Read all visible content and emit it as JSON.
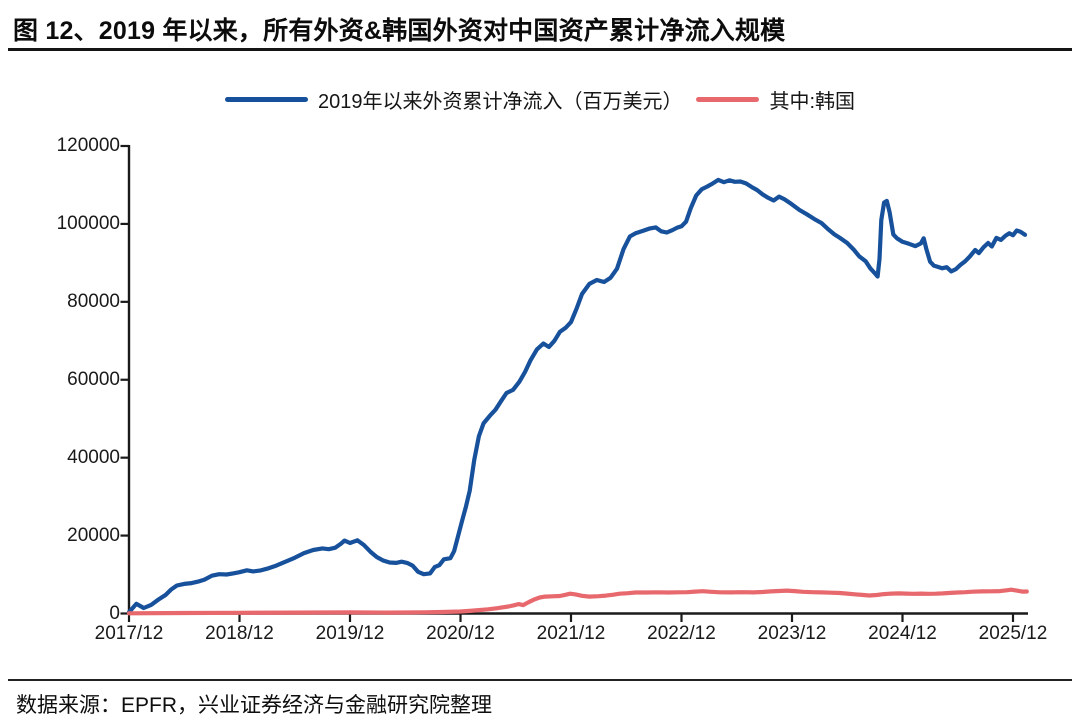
{
  "title": "图 12、2019 年以来，所有外资&韩国外资对中国资产累计净流入规模",
  "source_note": "数据来源：EPFR，兴业证券经济与金融研究院整理",
  "colors": {
    "foreign_total_line": "#17519b",
    "korea_line": "#e8696d",
    "axis": "#1a1a1a"
  },
  "legend": {
    "items": [
      {
        "label": "2019年以来外资累计净流入（百万美元）",
        "color": "#17519b"
      },
      {
        "label": "其中:韩国",
        "color": "#e8696d"
      }
    ]
  },
  "chart_data": {
    "type": "line",
    "title": "图 12、2019 年以来，所有外资&韩国外资对中国资产累计净流入规模",
    "xlabel": "",
    "ylabel": "",
    "x_unit": "months since 2017/12, monthly-to-weekly cumulative series",
    "value_unit": "百万美元 (million USD)",
    "ylim": [
      0,
      120000
    ],
    "y_ticks": [
      0,
      20000,
      40000,
      60000,
      80000,
      100000,
      120000
    ],
    "x_ticks": {
      "labels": [
        "2017/12",
        "2018/12",
        "2019/12",
        "2020/12",
        "2021/12",
        "2022/12",
        "2023/12",
        "2024/12",
        "2025/12"
      ],
      "months": [
        0,
        12,
        24,
        36,
        48,
        60,
        72,
        84,
        96
      ]
    },
    "x_range_months": [
      0,
      97.5
    ],
    "grid": false,
    "legend_position": "top-center",
    "series": [
      {
        "name": "2019年以来外资累计净流入（百万美元）",
        "color": "#17519b",
        "points": [
          [
            0,
            300
          ],
          [
            0.8,
            2500
          ],
          [
            1.6,
            1400
          ],
          [
            2.4,
            2200
          ],
          [
            3.2,
            3600
          ],
          [
            4,
            4800
          ],
          [
            4.6,
            6200
          ],
          [
            5.2,
            7200
          ],
          [
            6,
            7600
          ],
          [
            6.8,
            7800
          ],
          [
            7.5,
            8200
          ],
          [
            8.2,
            8700
          ],
          [
            9,
            9700
          ],
          [
            9.8,
            10100
          ],
          [
            10.6,
            10000
          ],
          [
            11.3,
            10300
          ],
          [
            12,
            10600
          ],
          [
            12.8,
            11100
          ],
          [
            13.5,
            10800
          ],
          [
            14.2,
            11000
          ],
          [
            15,
            11500
          ],
          [
            16,
            12300
          ],
          [
            17,
            13300
          ],
          [
            18,
            14300
          ],
          [
            19,
            15500
          ],
          [
            20,
            16300
          ],
          [
            21,
            16700
          ],
          [
            21.7,
            16500
          ],
          [
            22.4,
            16900
          ],
          [
            23,
            17900
          ],
          [
            23.4,
            18700
          ],
          [
            24,
            18100
          ],
          [
            24.8,
            18800
          ],
          [
            25.5,
            17600
          ],
          [
            26.2,
            15900
          ],
          [
            26.9,
            14500
          ],
          [
            27.6,
            13600
          ],
          [
            28.3,
            13100
          ],
          [
            29,
            13000
          ],
          [
            29.6,
            13300
          ],
          [
            30.2,
            13000
          ],
          [
            30.8,
            12300
          ],
          [
            31.4,
            10700
          ],
          [
            32,
            10100
          ],
          [
            32.7,
            10300
          ],
          [
            33.2,
            11900
          ],
          [
            33.7,
            12400
          ],
          [
            34.2,
            13900
          ],
          [
            34.9,
            14200
          ],
          [
            35.3,
            16000
          ],
          [
            35.7,
            19500
          ],
          [
            36.2,
            24000
          ],
          [
            36.6,
            27500
          ],
          [
            37,
            31500
          ],
          [
            37.5,
            39500
          ],
          [
            38,
            45500
          ],
          [
            38.5,
            48800
          ],
          [
            39.2,
            50800
          ],
          [
            39.8,
            52300
          ],
          [
            40.4,
            54500
          ],
          [
            41,
            56600
          ],
          [
            41.7,
            57400
          ],
          [
            42.4,
            59500
          ],
          [
            43,
            62000
          ],
          [
            43.6,
            65000
          ],
          [
            44.3,
            67800
          ],
          [
            45,
            69300
          ],
          [
            45.6,
            68400
          ],
          [
            46.2,
            70000
          ],
          [
            46.8,
            72300
          ],
          [
            47.4,
            73300
          ],
          [
            48,
            74800
          ],
          [
            48.6,
            78200
          ],
          [
            49.2,
            82000
          ],
          [
            50,
            84600
          ],
          [
            50.8,
            85600
          ],
          [
            51.6,
            85100
          ],
          [
            52.3,
            86200
          ],
          [
            53,
            88500
          ],
          [
            53.7,
            93500
          ],
          [
            54.4,
            96800
          ],
          [
            55,
            97600
          ],
          [
            55.8,
            98200
          ],
          [
            56.5,
            98800
          ],
          [
            57.2,
            99100
          ],
          [
            57.8,
            98100
          ],
          [
            58.4,
            97800
          ],
          [
            59,
            98400
          ],
          [
            59.5,
            99000
          ],
          [
            60,
            99400
          ],
          [
            60.5,
            100600
          ],
          [
            61,
            104000
          ],
          [
            61.6,
            107300
          ],
          [
            62.2,
            108900
          ],
          [
            62.8,
            109600
          ],
          [
            63.4,
            110400
          ],
          [
            64,
            111300
          ],
          [
            64.6,
            110700
          ],
          [
            65.2,
            111200
          ],
          [
            65.8,
            110800
          ],
          [
            66.4,
            110900
          ],
          [
            67,
            110400
          ],
          [
            67.6,
            109500
          ],
          [
            68.2,
            108700
          ],
          [
            68.8,
            107600
          ],
          [
            69.4,
            106700
          ],
          [
            70,
            106000
          ],
          [
            70.6,
            107000
          ],
          [
            71.2,
            106300
          ],
          [
            72,
            105000
          ],
          [
            72.8,
            103600
          ],
          [
            73.6,
            102500
          ],
          [
            74.4,
            101300
          ],
          [
            75.2,
            100200
          ],
          [
            76,
            98500
          ],
          [
            76.6,
            97300
          ],
          [
            77.2,
            96400
          ],
          [
            78,
            95100
          ],
          [
            78.7,
            93400
          ],
          [
            79.3,
            91700
          ],
          [
            80,
            90400
          ],
          [
            80.5,
            88600
          ],
          [
            81,
            87300
          ],
          [
            81.3,
            86500
          ],
          [
            81.5,
            91000
          ],
          [
            81.7,
            101000
          ],
          [
            82,
            105500
          ],
          [
            82.3,
            105900
          ],
          [
            82.6,
            103000
          ],
          [
            83,
            97300
          ],
          [
            83.4,
            96300
          ],
          [
            84,
            95400
          ],
          [
            84.7,
            94900
          ],
          [
            85.4,
            94300
          ],
          [
            86,
            95000
          ],
          [
            86.3,
            96300
          ],
          [
            86.6,
            93500
          ],
          [
            87,
            90300
          ],
          [
            87.4,
            89300
          ],
          [
            87.8,
            89000
          ],
          [
            88.3,
            88600
          ],
          [
            88.8,
            88900
          ],
          [
            89.3,
            87800
          ],
          [
            89.8,
            88400
          ],
          [
            90.3,
            89500
          ],
          [
            90.8,
            90400
          ],
          [
            91.3,
            91600
          ],
          [
            91.9,
            93300
          ],
          [
            92.3,
            92500
          ],
          [
            92.8,
            94000
          ],
          [
            93.3,
            95100
          ],
          [
            93.7,
            94200
          ],
          [
            94.2,
            96400
          ],
          [
            94.7,
            95900
          ],
          [
            95.2,
            97000
          ],
          [
            95.6,
            97600
          ],
          [
            96,
            97100
          ],
          [
            96.4,
            98300
          ],
          [
            96.8,
            98000
          ],
          [
            97.3,
            97200
          ]
        ]
      },
      {
        "name": "其中:韩国",
        "color": "#e8696d",
        "points": [
          [
            0,
            50
          ],
          [
            6,
            120
          ],
          [
            12,
            180
          ],
          [
            18,
            220
          ],
          [
            24,
            280
          ],
          [
            28,
            240
          ],
          [
            32,
            320
          ],
          [
            34,
            380
          ],
          [
            36,
            520
          ],
          [
            37,
            680
          ],
          [
            38,
            880
          ],
          [
            39,
            1080
          ],
          [
            40,
            1350
          ],
          [
            40.6,
            1580
          ],
          [
            41.2,
            1800
          ],
          [
            41.8,
            2100
          ],
          [
            42.3,
            2400
          ],
          [
            42.8,
            2150
          ],
          [
            43.4,
            2900
          ],
          [
            44,
            3600
          ],
          [
            44.6,
            4100
          ],
          [
            45.2,
            4350
          ],
          [
            46,
            4420
          ],
          [
            46.8,
            4480
          ],
          [
            47.4,
            4800
          ],
          [
            47.9,
            5080
          ],
          [
            48.5,
            4900
          ],
          [
            49.2,
            4550
          ],
          [
            50,
            4350
          ],
          [
            51,
            4430
          ],
          [
            51.8,
            4600
          ],
          [
            52.6,
            4820
          ],
          [
            53.3,
            5080
          ],
          [
            54.2,
            5200
          ],
          [
            55,
            5380
          ],
          [
            56.2,
            5400
          ],
          [
            57.4,
            5440
          ],
          [
            58.6,
            5380
          ],
          [
            59.6,
            5430
          ],
          [
            60.6,
            5480
          ],
          [
            61.5,
            5620
          ],
          [
            62.3,
            5720
          ],
          [
            63.2,
            5560
          ],
          [
            64.2,
            5430
          ],
          [
            65.4,
            5420
          ],
          [
            66.6,
            5460
          ],
          [
            67.8,
            5420
          ],
          [
            68.8,
            5520
          ],
          [
            69.7,
            5660
          ],
          [
            70.6,
            5780
          ],
          [
            71.4,
            5890
          ],
          [
            72.3,
            5740
          ],
          [
            73.2,
            5560
          ],
          [
            74.2,
            5460
          ],
          [
            75.2,
            5420
          ],
          [
            76.2,
            5340
          ],
          [
            77.2,
            5260
          ],
          [
            78,
            5120
          ],
          [
            78.8,
            4940
          ],
          [
            79.6,
            4780
          ],
          [
            80.4,
            4620
          ],
          [
            81.2,
            4750
          ],
          [
            82,
            4980
          ],
          [
            82.8,
            5120
          ],
          [
            83.6,
            5160
          ],
          [
            84.4,
            5110
          ],
          [
            85.2,
            5060
          ],
          [
            86,
            5110
          ],
          [
            86.8,
            5050
          ],
          [
            87.6,
            5090
          ],
          [
            88.4,
            5170
          ],
          [
            89.2,
            5280
          ],
          [
            90,
            5400
          ],
          [
            90.8,
            5480
          ],
          [
            91.6,
            5600
          ],
          [
            92.6,
            5680
          ],
          [
            93.6,
            5700
          ],
          [
            94.6,
            5760
          ],
          [
            95.3,
            5950
          ],
          [
            95.8,
            6120
          ],
          [
            96.4,
            5880
          ],
          [
            97,
            5620
          ],
          [
            97.5,
            5650
          ]
        ]
      }
    ]
  }
}
